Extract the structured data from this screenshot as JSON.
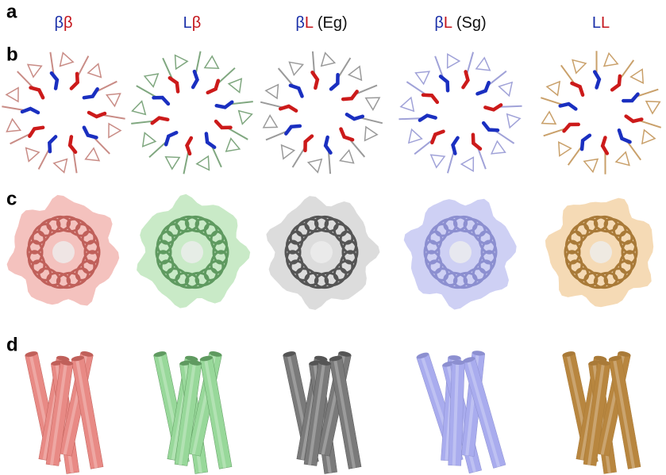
{
  "panels": [
    "a",
    "b",
    "c",
    "d"
  ],
  "columns": [
    {
      "parts": [
        "β",
        "β"
      ]
    },
    {
      "parts": [
        "L",
        "β"
      ]
    },
    {
      "parts": [
        "β",
        "L",
        " (Eg)"
      ]
    },
    {
      "parts": [
        "β",
        "L",
        " (Sg)"
      ]
    },
    {
      "parts": [
        "L",
        "L"
      ]
    }
  ]
}
